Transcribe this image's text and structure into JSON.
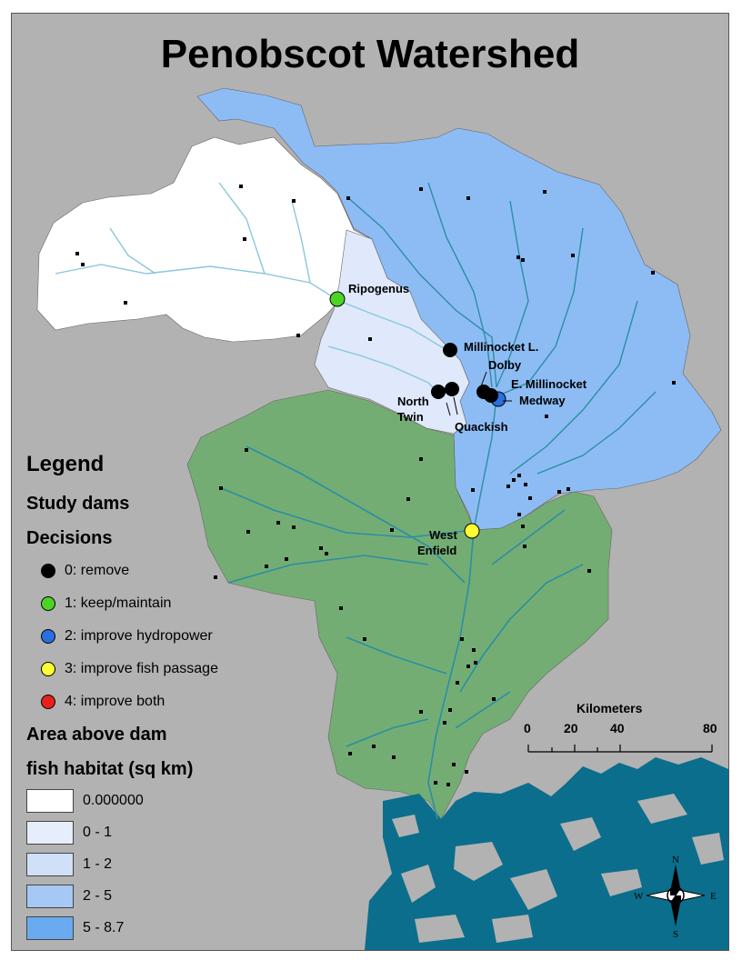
{
  "title": "Penobscot Watershed",
  "dam_labels": {
    "ripogenus": "Ripogenus",
    "millinocket_l": "Millinocket L.",
    "dolby": "Dolby",
    "e_millinocket": "E. Millinocket",
    "medway": "Medway",
    "north": "North",
    "twin": "Twin",
    "quackish": "Quackish",
    "west": "West",
    "enfield": "Enfield"
  },
  "legend": {
    "heading": "Legend",
    "study_dams": "Study dams",
    "decisions": "Decisions",
    "decision_items": [
      {
        "label": "0: remove",
        "color": "#000000"
      },
      {
        "label": "1: keep/maintain",
        "color": "#4cd424"
      },
      {
        "label": "2: improve hydropower",
        "color": "#2a6fe0"
      },
      {
        "label": "3: improve fish passage",
        "color": "#ffff33"
      },
      {
        "label": "4: improve both",
        "color": "#e8201c"
      }
    ],
    "area_title": "Area above dam",
    "area_subtitle": "fish habitat (sq km)",
    "area_items": [
      {
        "label": "0.000000",
        "color": "#ffffff"
      },
      {
        "label": "0 - 1",
        "color": "#e6eefc"
      },
      {
        "label": "1 - 2",
        "color": "#cfe0f8"
      },
      {
        "label": "2 - 5",
        "color": "#a6c8f4"
      },
      {
        "label": "5 - 8.7",
        "color": "#6aaaf0"
      }
    ]
  },
  "scale": {
    "title": "Kilometers",
    "ticks": [
      "0",
      "20",
      "40",
      "80"
    ]
  },
  "compass": {
    "n": "N",
    "s": "S",
    "e": "E",
    "w": "W"
  },
  "colors": {
    "background": "#b2b2b2",
    "lower_watershed": "#74ad74",
    "upper_blue": "#8dbcf5",
    "west_white": "#ffffff",
    "middle_lightblue": "#dfe9fb",
    "rivers_upper": "#89c7dc",
    "rivers_lower": "#2b8ea4",
    "ocean": "#0b6e8c"
  }
}
